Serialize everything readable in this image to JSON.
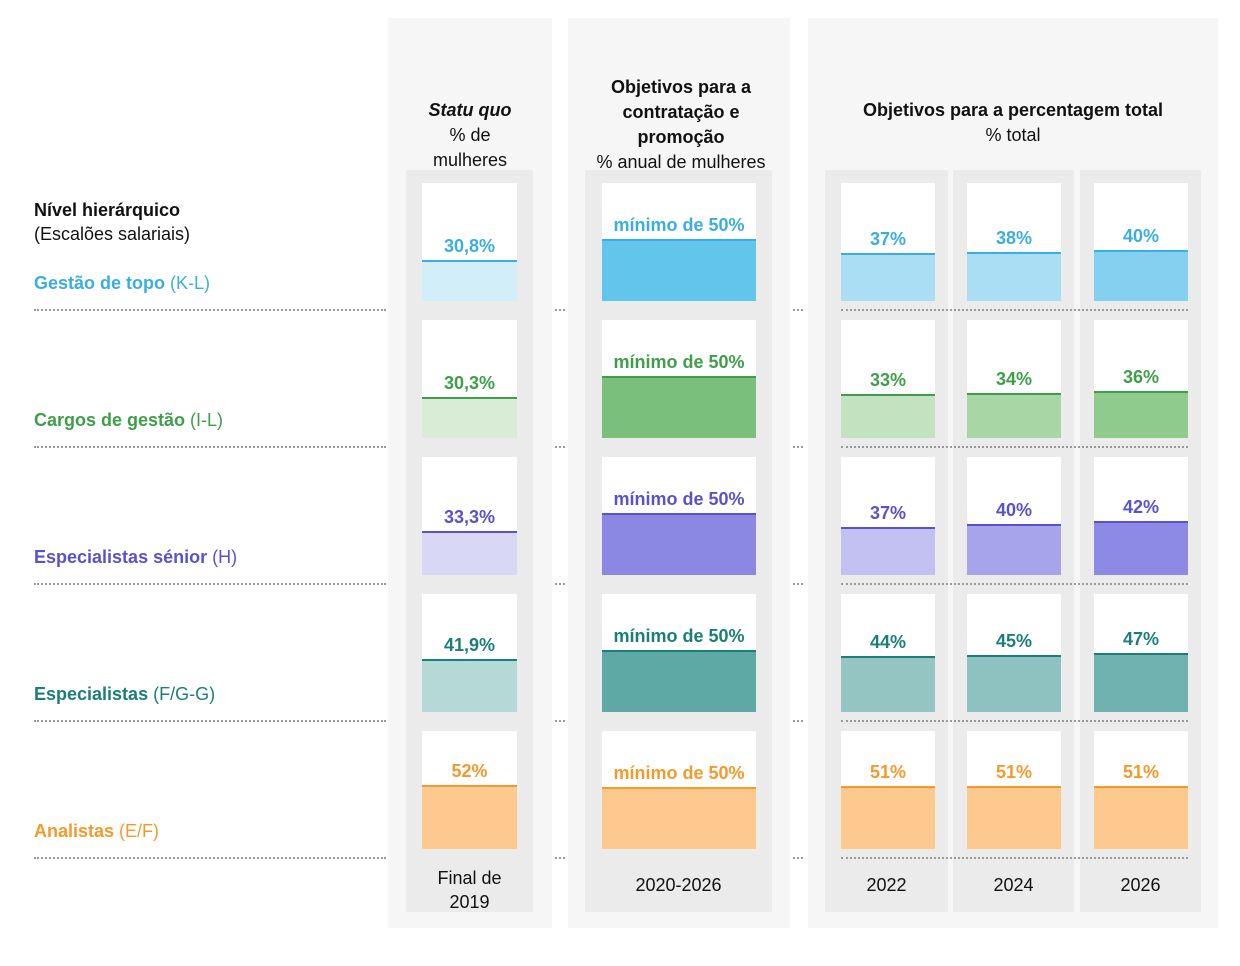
{
  "chart_data": {
    "type": "bar",
    "row_header": {
      "title": "Nível hierárquico",
      "subtitle": "(Escalões salariais)"
    },
    "groups": [
      {
        "title_italic": "Statu quo",
        "title": "",
        "subtitle": "% de mulheres"
      },
      {
        "title": "Objetivos para a contratação e promoção",
        "subtitle": "% anual de mulheres"
      },
      {
        "title": "Objetivos para a percentagem total",
        "subtitle": "% total"
      }
    ],
    "columns": [
      {
        "label": "Final de 2019"
      },
      {
        "label": "2020-2026"
      },
      {
        "label": "2022"
      },
      {
        "label": "2024"
      },
      {
        "label": "2026"
      }
    ],
    "rows": [
      {
        "name": "Gestão de topo",
        "grade": "(K-L)",
        "color": "#3aaee0",
        "fills": [
          "#d2eef9",
          "#62c6ec",
          "#a9def4",
          "#a9def4",
          "#83d0f0"
        ],
        "labels": [
          "30,8%",
          "mínimo de 50%",
          "37%",
          "38%",
          "40%"
        ],
        "values": [
          30.8,
          50,
          37,
          38,
          40
        ]
      },
      {
        "name": "Cargos de gestão",
        "grade": "(I-L)",
        "color": "#3f9e4a",
        "fills": [
          "#d8ecd6",
          "#7abf7b",
          "#c2e2c0",
          "#a8d6a5",
          "#8fcb8c"
        ],
        "labels": [
          "30,3%",
          "mínimo de 50%",
          "33%",
          "34%",
          "36%"
        ],
        "values": [
          30.3,
          50,
          33,
          34,
          36
        ]
      },
      {
        "name": "Especialistas sénior",
        "grade": "(H)",
        "color": "#5a52cc",
        "fills": [
          "#d8d8f6",
          "#8a88e2",
          "#c2c1f2",
          "#a6a4ea",
          "#8c8ae4"
        ],
        "labels": [
          "33,3%",
          "mínimo de 50%",
          "37%",
          "40%",
          "42%"
        ],
        "values": [
          33.3,
          50,
          37,
          40,
          42
        ]
      },
      {
        "name": "Especialistas",
        "grade": "(F/G-G)",
        "color": "#1b7f78",
        "fills": [
          "#b5d9d6",
          "#5ea8a6",
          "#94c5c3",
          "#8ec2c1",
          "#6fb2b0"
        ],
        "labels": [
          "41,9%",
          "mínimo de 50%",
          "44%",
          "45%",
          "47%"
        ],
        "values": [
          41.9,
          50,
          44,
          45,
          47
        ]
      },
      {
        "name": "Analistas",
        "grade": "(E/F)",
        "color": "#f39a2c",
        "fills": [
          "#fec98f",
          "#fec98f",
          "#fec98f",
          "#fec98f",
          "#fec98f"
        ],
        "labels": [
          "52%",
          "mínimo de 50%",
          "51%",
          "51%",
          "51%"
        ],
        "values": [
          52,
          50,
          51,
          51,
          51
        ]
      }
    ]
  }
}
